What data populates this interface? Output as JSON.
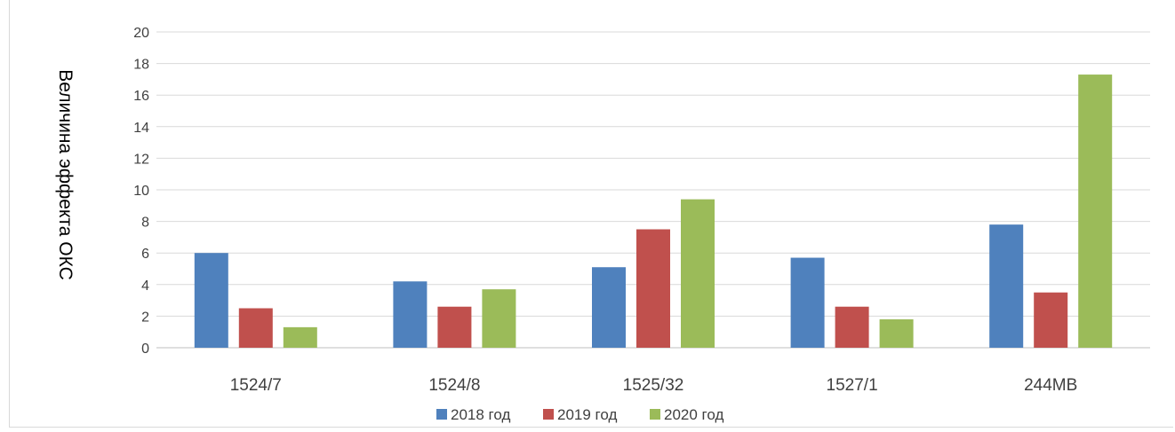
{
  "chart_data": {
    "type": "bar",
    "title": "",
    "xlabel": "",
    "ylabel": "Величина эффекта ОКС",
    "ylim": [
      0,
      20
    ],
    "ytick_step": 2,
    "yticks": [
      "0",
      "2",
      "4",
      "6",
      "8",
      "10",
      "12",
      "14",
      "16",
      "18",
      "20"
    ],
    "categories": [
      "1524/7",
      "1524/8",
      "1525/32",
      "1527/1",
      "244MB"
    ],
    "series": [
      {
        "name": "2018 год",
        "color": "#4f81bd",
        "values": [
          6.0,
          4.2,
          5.1,
          5.7,
          7.8
        ]
      },
      {
        "name": "2019 год",
        "color": "#c0504d",
        "values": [
          2.5,
          2.6,
          7.5,
          2.6,
          3.5
        ]
      },
      {
        "name": "2020 год",
        "color": "#9bbb59",
        "values": [
          1.3,
          3.7,
          9.4,
          1.8,
          17.3
        ]
      }
    ],
    "grid": true,
    "legend_position": "bottom"
  }
}
